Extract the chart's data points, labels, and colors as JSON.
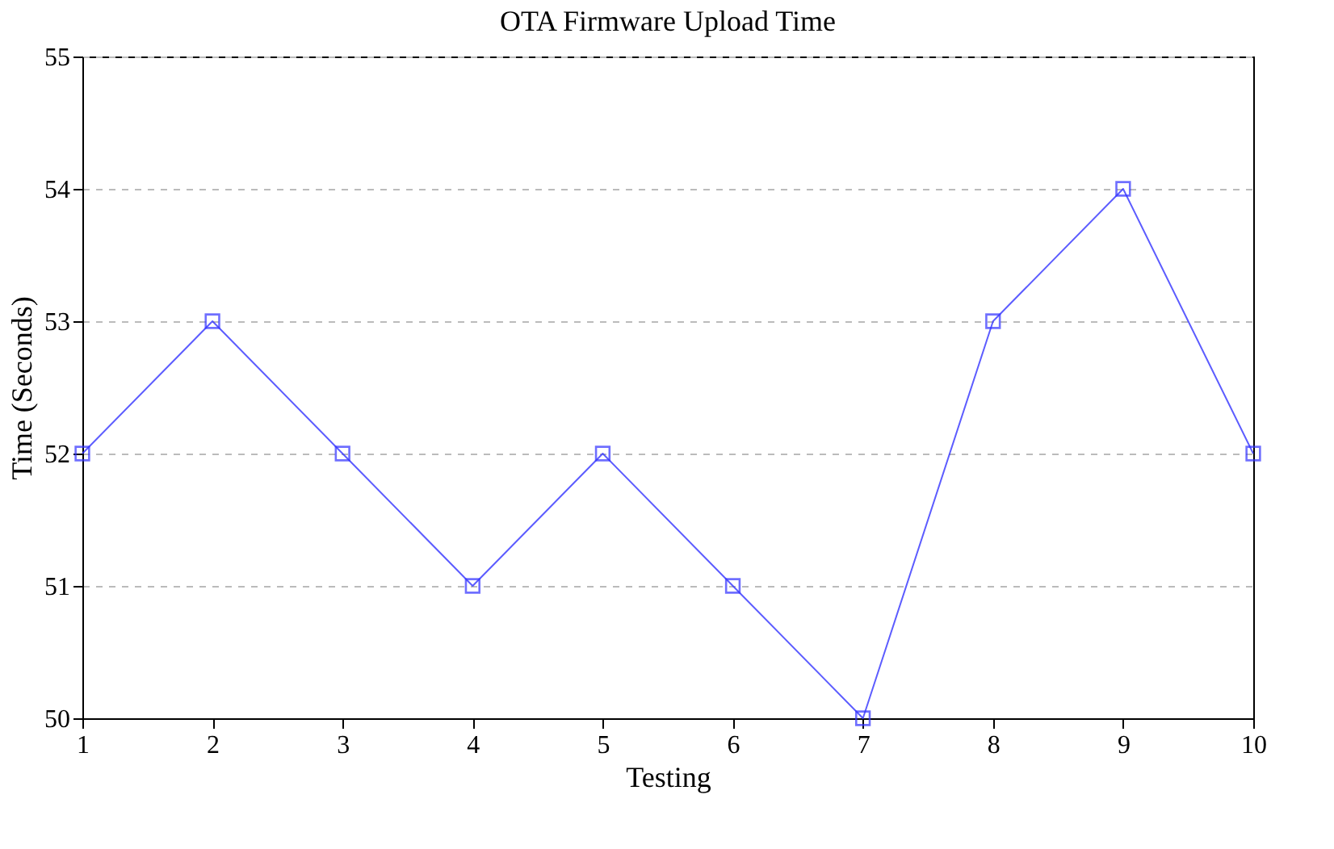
{
  "chart_data": {
    "type": "line",
    "title": "OTA Firmware Upload Time",
    "xlabel": "Testing",
    "ylabel": "Time (Seconds)",
    "x": [
      1,
      2,
      3,
      4,
      5,
      6,
      7,
      8,
      9,
      10
    ],
    "series": [
      {
        "color": "#3333ff",
        "values": [
          52,
          53,
          52,
          51,
          52,
          51,
          50,
          53,
          54,
          52
        ]
      }
    ],
    "xlim": [
      1,
      10
    ],
    "xticks": [
      1,
      2,
      3,
      4,
      5,
      6,
      7,
      8,
      9,
      10
    ],
    "ylim": [
      50,
      55
    ],
    "yticks": [
      50,
      51,
      52,
      53,
      54,
      55
    ],
    "grid": "y",
    "marker": "square",
    "line_style": "solid",
    "legend": false
  }
}
